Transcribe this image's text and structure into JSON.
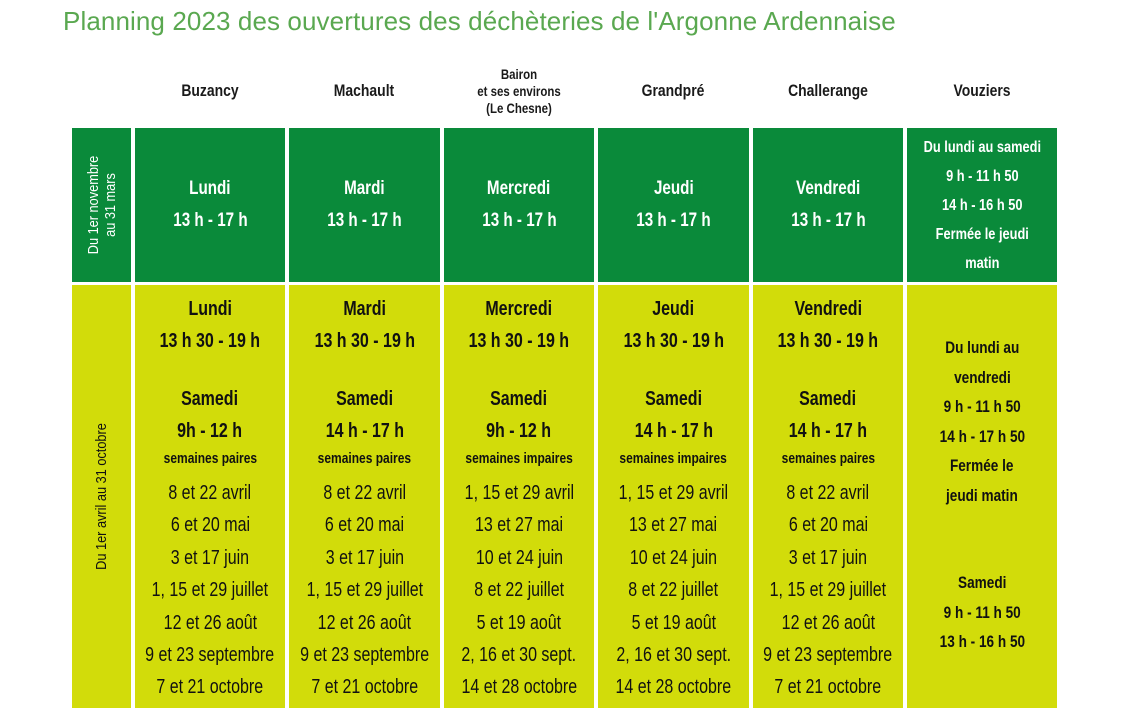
{
  "title": "Planning 2023 des ouvertures des déchèteries de l'Argonne Ardennaise",
  "columns": [
    "Buzancy",
    "Machault",
    "Bairon\net ses environs\n(Le Chesne)",
    "Grandpré",
    "Challerange",
    "Vouziers"
  ],
  "row_labels": {
    "winter": [
      "Du 1er novembre",
      "au 31 mars"
    ],
    "summer": "Du 1er avril au 31 octobre"
  },
  "winter": {
    "buzancy": {
      "day": "Lundi",
      "hours": "13 h - 17 h"
    },
    "machault": {
      "day": "Mardi",
      "hours": "13 h - 17 h"
    },
    "bairon": {
      "day": "Mercredi",
      "hours": "13 h - 17 h"
    },
    "grandpre": {
      "day": "Jeudi",
      "hours": "13 h - 17 h"
    },
    "challerange": {
      "day": "Vendredi",
      "hours": "13 h - 17 h"
    },
    "vouziers": [
      "Du lundi au samedi",
      "9 h - 11 h 50",
      "14 h - 16 h 50",
      "Fermée le jeudi",
      "matin"
    ]
  },
  "summer": {
    "buzancy": {
      "day": "Lundi",
      "hours": "13 h 30 - 19 h",
      "sat": "Samedi",
      "sat_hours": "9h - 12 h",
      "weeks": "semaines paires",
      "dates": [
        "8 et 22 avril",
        "6 et 20 mai",
        "3 et 17 juin",
        "1, 15 et 29 juillet",
        "12 et 26 août",
        "9 et 23 septembre",
        "7 et 21 octobre"
      ]
    },
    "machault": {
      "day": "Mardi",
      "hours": "13 h 30 - 19 h",
      "sat": "Samedi",
      "sat_hours": "14 h - 17 h",
      "weeks": "semaines paires",
      "dates": [
        "8 et 22 avril",
        "6 et 20 mai",
        "3 et 17 juin",
        "1, 15 et 29 juillet",
        "12 et 26 août",
        "9 et 23 septembre",
        "7 et 21 octobre"
      ]
    },
    "bairon": {
      "day": "Mercredi",
      "hours": "13 h 30 - 19 h",
      "sat": "Samedi",
      "sat_hours": "9h - 12 h",
      "weeks": "semaines impaires",
      "dates": [
        "1, 15 et 29 avril",
        "13 et 27 mai",
        "10 et 24 juin",
        "8 et 22 juillet",
        "5 et 19 août",
        "2, 16 et 30 sept.",
        "14 et 28 octobre"
      ]
    },
    "grandpre": {
      "day": "Jeudi",
      "hours": "13 h 30 - 19 h",
      "sat": "Samedi",
      "sat_hours": "14 h - 17 h",
      "weeks": "semaines impaires",
      "dates": [
        "1, 15 et 29 avril",
        "13 et 27 mai",
        "10 et 24 juin",
        "8 et 22 juillet",
        "5 et 19 août",
        "2, 16 et 30 sept.",
        "14 et 28 octobre"
      ]
    },
    "challerange": {
      "day": "Vendredi",
      "hours": "13 h 30 - 19 h",
      "sat": "Samedi",
      "sat_hours": "14 h - 17 h",
      "weeks": "semaines paires",
      "dates": [
        "8 et 22 avril",
        "6 et 20 mai",
        "3 et 17 juin",
        "1, 15 et 29 juillet",
        "12 et 26 août",
        "9 et 23 septembre",
        "7 et 21 octobre"
      ]
    },
    "vouziers": {
      "week": [
        "Du lundi au",
        "vendredi",
        "9 h - 11 h 50",
        "14 h - 17 h 50",
        "Fermée le",
        "jeudi matin"
      ],
      "sat": [
        "Samedi",
        "9 h - 11 h 50",
        "13 h - 16 h 50"
      ]
    }
  },
  "colors": {
    "title": "#5aa850",
    "winter_bg": "#0a8a3a",
    "summer_bg": "#d2dc0a"
  }
}
